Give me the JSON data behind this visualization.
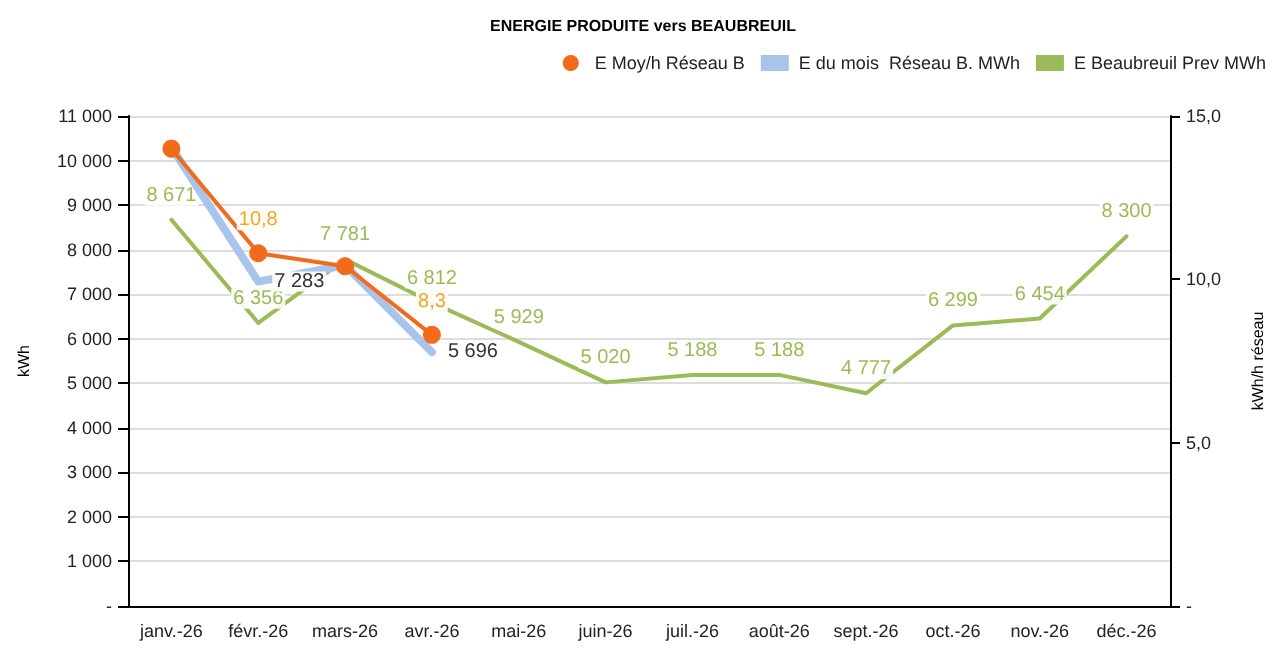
{
  "chart_data": {
    "type": "line",
    "title": "ENERGIE PRODUITE vers BEAUBREUIL",
    "ylabel": "kWh",
    "y2label": "kWh/h réseau",
    "categories": [
      "janv.-26",
      "févr.-26",
      "mars-26",
      "avr.-26",
      "mai-26",
      "juin-26",
      "juil.-26",
      "août-26",
      "sept.-26",
      "oct.-26",
      "nov.-26",
      "déc.-26"
    ],
    "series": [
      {
        "name": "E Moy/h Réseau B",
        "axis": "y2",
        "color": "#f26b1d",
        "marker": "circle",
        "values": [
          14.0,
          10.8,
          10.4,
          8.3,
          null,
          null,
          null,
          null,
          null,
          null,
          null,
          null
        ],
        "value_labels": [
          null,
          "10,8",
          null,
          "8,3",
          null,
          null,
          null,
          null,
          null,
          null,
          null,
          null
        ]
      },
      {
        "name": "E du mois  Réseau B. MWh",
        "color": "#a9c4eb",
        "marker": "none",
        "values": [
          10300,
          7283,
          7650,
          5696,
          null,
          null,
          null,
          null,
          null,
          null,
          null,
          null
        ],
        "value_labels": [
          null,
          "7 283",
          null,
          "5 696",
          null,
          null,
          null,
          null,
          null,
          null,
          null,
          null
        ]
      },
      {
        "name": "E Beaubreuil Prev MWh",
        "color": "#9bbb59",
        "marker": "none",
        "values": [
          8671,
          6356,
          7781,
          6812,
          5929,
          5020,
          5188,
          5188,
          4777,
          6299,
          6454,
          8300
        ],
        "value_labels": [
          "8 671",
          "6 356",
          "7 781",
          "6 812",
          "5 929",
          "5 020",
          "5 188",
          "5 188",
          "4 777",
          "6 299",
          "6 454",
          "8 300"
        ]
      }
    ],
    "ylim": [
      0,
      11000
    ],
    "yticks": [
      {
        "value": 0,
        "label": "-"
      },
      {
        "value": 1000,
        "label": "1 000"
      },
      {
        "value": 2000,
        "label": "2 000"
      },
      {
        "value": 3000,
        "label": "3 000"
      },
      {
        "value": 4000,
        "label": "4 000"
      },
      {
        "value": 5000,
        "label": "5 000"
      },
      {
        "value": 6000,
        "label": "6 000"
      },
      {
        "value": 7000,
        "label": "7 000"
      },
      {
        "value": 8000,
        "label": "8 000"
      },
      {
        "value": 9000,
        "label": "9 000"
      },
      {
        "value": 10000,
        "label": "10 000"
      },
      {
        "value": 11000,
        "label": "11 000"
      }
    ],
    "y2lim": [
      0,
      15
    ],
    "y2ticks": [
      {
        "value": 0,
        "label": "-"
      },
      {
        "value": 5,
        "label": "5,0"
      },
      {
        "value": 10,
        "label": "10,0"
      },
      {
        "value": 15,
        "label": "15,0"
      }
    ],
    "grid": "y",
    "legend": "top right"
  }
}
